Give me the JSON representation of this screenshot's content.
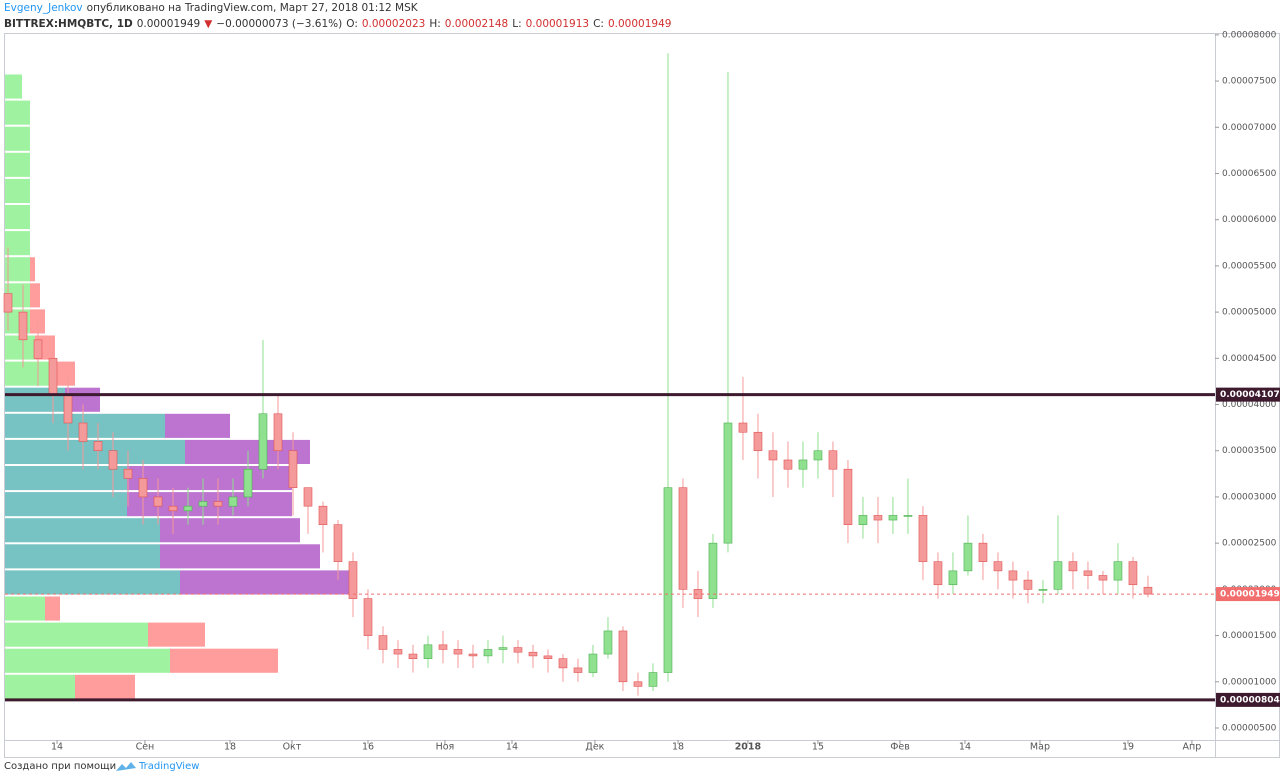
{
  "header": {
    "author": "Evgeny_Jenkov",
    "published": "опубликовано на TradingView.com, Март 27, 2018 01:12 MSK",
    "symbol": "BITTREX:HMQBTC, 1D",
    "last": "0.00001949",
    "arrow": "▼",
    "change": "−0.00000073 (−3.61%)",
    "o_label": "O:",
    "o": "0.00002023",
    "h_label": "H:",
    "h": "0.00002148",
    "l_label": "L:",
    "l": "0.00001913",
    "c_label": "C:",
    "c": "0.00001949"
  },
  "footer": {
    "text": "Создано при помощи",
    "brand": "TradingView"
  },
  "chart_data": {
    "type": "candlestick",
    "open": [
      5.2e-05,
      5e-05,
      4.7e-05,
      4.5e-05,
      4.1e-05,
      3.8e-05,
      3.6e-05,
      3.5e-05,
      3.3e-05,
      3.2e-05,
      3e-05,
      2.9e-05,
      2.85e-05,
      2.9e-05,
      2.95e-05,
      2.9e-05,
      3e-05,
      3.3e-05,
      3.9e-05,
      3.5e-05,
      3.1e-05,
      2.9e-05,
      2.7e-05,
      2.3e-05,
      1.9e-05,
      1.5e-05,
      1.35e-05,
      1.3e-05,
      1.25e-05,
      1.4e-05,
      1.35e-05,
      1.3e-05,
      1.28e-05,
      1.35e-05,
      1.37e-05,
      1.32e-05,
      1.28e-05,
      1.25e-05,
      1.15e-05,
      1.1e-05,
      1.3e-05,
      1.55e-05,
      1e-05,
      9.5e-06,
      1.1e-05,
      3.1e-05,
      2e-05,
      1.9e-05,
      2.5e-05,
      3.8e-05,
      3.7e-05,
      3.5e-05,
      3.4e-05,
      3.3e-05,
      3.4e-05,
      3.5e-05,
      3.3e-05,
      2.7e-05,
      2.8e-05,
      2.75e-05,
      2.8e-05,
      2.8e-05,
      2.3e-05,
      2.05e-05,
      2.2e-05,
      2.5e-05,
      2.3e-05,
      2.2e-05,
      2.1e-05,
      2e-05,
      2e-05,
      2.3e-05,
      2.2e-05,
      2.15e-05,
      2.1e-05,
      2.3e-05,
      2.023e-05
    ],
    "high": [
      5.7e-05,
      5.3e-05,
      4.9e-05,
      4.7e-05,
      4.3e-05,
      4e-05,
      3.8e-05,
      3.7e-05,
      3.5e-05,
      3.4e-05,
      3.2e-05,
      3.1e-05,
      3.1e-05,
      3.2e-05,
      3.2e-05,
      3.2e-05,
      3.5e-05,
      4.7e-05,
      4.1e-05,
      3.7e-05,
      3.1e-05,
      2.95e-05,
      2.75e-05,
      2.4e-05,
      2e-05,
      1.6e-05,
      1.45e-05,
      1.4e-05,
      1.5e-05,
      1.55e-05,
      1.45e-05,
      1.4e-05,
      1.45e-05,
      1.5e-05,
      1.45e-05,
      1.4e-05,
      1.35e-05,
      1.3e-05,
      1.25e-05,
      1.4e-05,
      1.7e-05,
      1.6e-05,
      1.1e-05,
      1.2e-05,
      7.8e-05,
      3.2e-05,
      2.2e-05,
      2.6e-05,
      7.6e-05,
      4.3e-05,
      3.9e-05,
      3.7e-05,
      3.6e-05,
      3.6e-05,
      3.7e-05,
      3.6e-05,
      3.4e-05,
      3e-05,
      3e-05,
      3e-05,
      3.2e-05,
      2.9e-05,
      2.4e-05,
      2.4e-05,
      2.8e-05,
      2.6e-05,
      2.4e-05,
      2.3e-05,
      2.2e-05,
      2.1e-05,
      2.8e-05,
      2.4e-05,
      2.3e-05,
      2.2e-05,
      2.5e-05,
      2.35e-05,
      2.148e-05
    ],
    "low": [
      4.8e-05,
      4.4e-05,
      4.2e-05,
      3.8e-05,
      3.5e-05,
      3.3e-05,
      3.3e-05,
      3e-05,
      2.9e-05,
      2.7e-05,
      2.7e-05,
      2.6e-05,
      2.7e-05,
      2.7e-05,
      2.7e-05,
      2.8e-05,
      2.9e-05,
      3.2e-05,
      3.3e-05,
      2.8e-05,
      2.6e-05,
      2.4e-05,
      2.1e-05,
      1.7e-05,
      1.35e-05,
      1.2e-05,
      1.15e-05,
      1.1e-05,
      1.15e-05,
      1.2e-05,
      1.15e-05,
      1.15e-05,
      1.2e-05,
      1.2e-05,
      1.2e-05,
      1.15e-05,
      1.1e-05,
      1e-05,
      1e-05,
      1.05e-05,
      1.25e-05,
      9e-06,
      8.5e-06,
      9e-06,
      1e-05,
      1.8e-05,
      1.7e-05,
      1.8e-05,
      2.4e-05,
      3.4e-05,
      3.2e-05,
      3e-05,
      3.1e-05,
      3.1e-05,
      3.2e-05,
      3e-05,
      2.5e-05,
      2.55e-05,
      2.5e-05,
      2.6e-05,
      2.6e-05,
      2.1e-05,
      1.9e-05,
      1.95e-05,
      2.15e-05,
      2.1e-05,
      2e-05,
      1.9e-05,
      1.85e-05,
      1.85e-05,
      1.95e-05,
      2e-05,
      2e-05,
      1.95e-05,
      1.95e-05,
      1.9e-05,
      1.913e-05
    ],
    "close": [
      5e-05,
      4.7e-05,
      4.5e-05,
      4.1e-05,
      3.8e-05,
      3.6e-05,
      3.5e-05,
      3.3e-05,
      3.2e-05,
      3e-05,
      2.9e-05,
      2.85e-05,
      2.9e-05,
      2.95e-05,
      2.9e-05,
      3e-05,
      3.3e-05,
      3.9e-05,
      3.5e-05,
      3.1e-05,
      2.9e-05,
      2.7e-05,
      2.3e-05,
      1.9e-05,
      1.5e-05,
      1.35e-05,
      1.3e-05,
      1.25e-05,
      1.4e-05,
      1.35e-05,
      1.3e-05,
      1.28e-05,
      1.35e-05,
      1.37e-05,
      1.32e-05,
      1.28e-05,
      1.25e-05,
      1.15e-05,
      1.1e-05,
      1.3e-05,
      1.55e-05,
      1e-05,
      9.5e-06,
      1.1e-05,
      3.1e-05,
      2e-05,
      1.9e-05,
      2.5e-05,
      3.8e-05,
      3.7e-05,
      3.5e-05,
      3.4e-05,
      3.3e-05,
      3.4e-05,
      3.5e-05,
      3.3e-05,
      2.7e-05,
      2.8e-05,
      2.75e-05,
      2.8e-05,
      2.8e-05,
      2.3e-05,
      2.05e-05,
      2.2e-05,
      2.5e-05,
      2.3e-05,
      2.2e-05,
      2.1e-05,
      2e-05,
      2e-05,
      2.3e-05,
      2.2e-05,
      2.15e-05,
      2.1e-05,
      2.3e-05,
      2.05e-05,
      1.949e-05
    ],
    "up_color": "#8fe08f",
    "down_color": "#f49a9a",
    "xlim": [
      -0.2,
      80.47
    ],
    "xticks": [
      {
        "value": 3.27,
        "label": "14"
      },
      {
        "value": 9.13,
        "label": "Сен"
      },
      {
        "value": 14.8,
        "label": "18"
      },
      {
        "value": 18.93,
        "label": "Окт"
      },
      {
        "value": 24,
        "label": "16"
      },
      {
        "value": 29.13,
        "label": "Ноя"
      },
      {
        "value": 33.6,
        "label": "14"
      },
      {
        "value": 39.13,
        "label": "Дек"
      },
      {
        "value": 44.67,
        "label": "18"
      },
      {
        "value": 49.33,
        "label": "2018"
      },
      {
        "value": 54,
        "label": "15"
      },
      {
        "value": 59.47,
        "label": "Фев"
      },
      {
        "value": 63.8,
        "label": "14"
      },
      {
        "value": 68.8,
        "label": "Мар"
      },
      {
        "value": 74.67,
        "label": "19"
      },
      {
        "value": 78.93,
        "label": "Апр"
      }
    ],
    "ylim": [
      3.7e-06,
      8.02e-05
    ],
    "yticks": [
      {
        "value": 5e-06,
        "label": "0.00000500"
      },
      {
        "value": 1e-05,
        "label": "0.00001000"
      },
      {
        "value": 1.5e-05,
        "label": "0.00001500"
      },
      {
        "value": 2e-05,
        "label": "0.00002000"
      },
      {
        "value": 2.5e-05,
        "label": "0.00002500"
      },
      {
        "value": 3e-05,
        "label": "0.00003000"
      },
      {
        "value": 3.5e-05,
        "label": "0.00003500"
      },
      {
        "value": 4e-05,
        "label": "0.00004000"
      },
      {
        "value": 4.5e-05,
        "label": "0.00004500"
      },
      {
        "value": 5e-05,
        "label": "0.00005000"
      },
      {
        "value": 5.5e-05,
        "label": "0.00005500"
      },
      {
        "value": 6e-05,
        "label": "0.00006000"
      },
      {
        "value": 6.5e-05,
        "label": "0.00006500"
      },
      {
        "value": 7e-05,
        "label": "0.00007000"
      },
      {
        "value": 7.5e-05,
        "label": "0.00007500"
      },
      {
        "value": 8e-05,
        "label": "0.00008000"
      }
    ],
    "levels": [
      {
        "value": 4.107e-05,
        "label": "0.00004107",
        "color": "#3d1a2e"
      },
      {
        "value": 8.04e-06,
        "label": "0.00000804",
        "color": "#3d1a2e"
      }
    ],
    "last_price": {
      "value": 1.949e-05,
      "label": "0.00001949",
      "color": "#f26d6d"
    },
    "volume_profile": {
      "rows": [
        {
          "up": 70,
          "down": 60,
          "value_area": false
        },
        {
          "up": 165,
          "down": 108,
          "value_area": false
        },
        {
          "up": 143,
          "down": 57,
          "value_area": false
        },
        {
          "up": 40,
          "down": 15,
          "value_area": false
        },
        {
          "up": 175,
          "down": 172,
          "value_area": true
        },
        {
          "up": 155,
          "down": 160,
          "value_area": true
        },
        {
          "up": 155,
          "down": 140,
          "value_area": true
        },
        {
          "up": 122,
          "down": 165,
          "value_area": true
        },
        {
          "up": 122,
          "down": 165,
          "value_area": true
        },
        {
          "up": 180,
          "down": 125,
          "value_area": true
        },
        {
          "up": 160,
          "down": 65,
          "value_area": true
        },
        {
          "up": 60,
          "down": 35,
          "value_area": true
        },
        {
          "up": 45,
          "down": 25,
          "value_area": false
        },
        {
          "up": 30,
          "down": 20,
          "value_area": false
        },
        {
          "up": 25,
          "down": 15,
          "value_area": false
        },
        {
          "up": 25,
          "down": 10,
          "value_area": false
        },
        {
          "up": 25,
          "down": 5,
          "value_area": false
        },
        {
          "up": 25,
          "down": 0,
          "value_area": false
        },
        {
          "up": 25,
          "down": 0,
          "value_area": false
        },
        {
          "up": 25,
          "down": 0,
          "value_area": false
        },
        {
          "up": 25,
          "down": 0,
          "value_area": false
        },
        {
          "up": 25,
          "down": 0,
          "value_area": false
        },
        {
          "up": 25,
          "down": 0,
          "value_area": false
        },
        {
          "up": 17,
          "down": 0,
          "value_area": false
        }
      ]
    }
  }
}
